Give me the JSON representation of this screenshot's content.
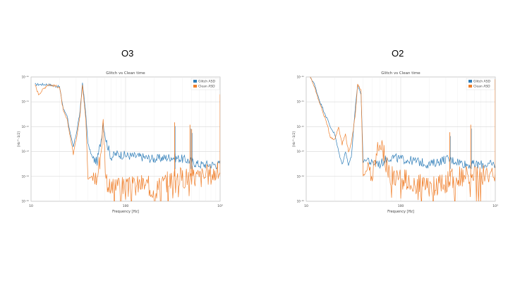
{
  "slide": {
    "left_label": "O3",
    "right_label": "O2"
  },
  "colors": {
    "glitch": "#2e7db8",
    "clean": "#f07f2b"
  },
  "chart_data": [
    {
      "type": "line",
      "title": "Glitch vs Clean time",
      "xlabel": "Frequency [Hz]",
      "ylabel": "[Hz^-1/2]",
      "xscale": "log",
      "yscale": "log",
      "xlim": [
        10,
        1000
      ],
      "ylim": [
        1e-25,
        1e-20
      ],
      "x_ticks": [
        "10",
        "100",
        "10³"
      ],
      "y_ticks": [
        "10⁻²⁵",
        "10⁻²⁴",
        "10⁻²³",
        "10⁻²²",
        "10⁻²¹",
        "10⁻²⁰"
      ],
      "grid": true,
      "legend_position": "top-right",
      "series": [
        {
          "name": "Glitch ASD",
          "color": "#2e7db8",
          "x": [
            11,
            12,
            15,
            20,
            22,
            24,
            26,
            28,
            30,
            33,
            35,
            38,
            40,
            45,
            50,
            55,
            58,
            62,
            70,
            80,
            100,
            150,
            200,
            300,
            400,
            500,
            600,
            800,
            1000
          ],
          "y": [
            5e-21,
            5e-21,
            5e-21,
            4e-21,
            5e-22,
            3e-22,
            5e-23,
            1.5e-23,
            5e-23,
            4e-22,
            6e-21,
            3e-22,
            2e-23,
            5e-24,
            4e-24,
            3e-23,
            1.5e-22,
            3e-23,
            6e-24,
            8e-24,
            7e-24,
            6e-24,
            5e-24,
            6e-24,
            5e-24,
            4e-24,
            3e-24,
            3e-24,
            3e-24
          ]
        },
        {
          "name": "Clean ASD",
          "color": "#f07f2b",
          "x": [
            11,
            12,
            15,
            20,
            22,
            24,
            26,
            28,
            30,
            33,
            35,
            38,
            40,
            45,
            50,
            55,
            58,
            62,
            70,
            80,
            100,
            150,
            200,
            300,
            400,
            500,
            600,
            800,
            1000
          ],
          "y": [
            5e-21,
            2e-21,
            5e-21,
            4e-21,
            4e-22,
            2e-22,
            4e-23,
            8e-24,
            3e-23,
            3e-22,
            5e-21,
            2e-22,
            8e-25,
            1e-24,
            8e-25,
            1.2e-23,
            1.5e-22,
            1e-24,
            2e-25,
            6e-25,
            3e-25,
            5e-25,
            3e-25,
            8e-25,
            9e-25,
            1e-24,
            9e-25,
            1.2e-24,
            1.5e-24
          ]
        }
      ],
      "spikes": [
        {
          "x": 330,
          "y": 1.5e-22
        },
        {
          "x": 480,
          "y": 1.2e-22
        },
        {
          "x": 500,
          "y": 8e-23
        },
        {
          "x": 1000,
          "y": 2e-21
        }
      ]
    },
    {
      "type": "line",
      "title": "Glitch vs Clean time",
      "xlabel": "Frequency [Hz]",
      "ylabel": "[Hz^-1/2]",
      "xscale": "log",
      "yscale": "log",
      "xlim": [
        10,
        1000
      ],
      "ylim": [
        1e-25,
        1e-20
      ],
      "x_ticks": [
        "10",
        "100",
        "10³"
      ],
      "y_ticks": [
        "10⁻²⁵",
        "10⁻²⁴",
        "10⁻²³",
        "10⁻²²",
        "10⁻²¹",
        "10⁻²⁰"
      ],
      "grid": true,
      "legend_position": "top-right",
      "series": [
        {
          "name": "Glitch ASD",
          "color": "#2e7db8",
          "x": [
            11,
            12,
            14,
            16,
            18,
            20,
            22,
            24,
            26,
            28,
            30,
            33,
            35,
            38,
            40,
            45,
            50,
            55,
            60,
            70,
            80,
            100,
            150,
            200,
            300,
            400,
            500,
            600,
            800,
            1000
          ],
          "y": [
            1e-20,
            6e-21,
            1e-21,
            3e-22,
            1e-22,
            5e-23,
            1e-23,
            3e-24,
            1e-23,
            3e-24,
            6e-24,
            5e-22,
            5e-21,
            2e-21,
            4e-24,
            5e-24,
            3e-24,
            4e-24,
            3e-24,
            5e-24,
            6e-24,
            5e-24,
            4e-24,
            3e-24,
            5e-24,
            4e-24,
            3e-24,
            3e-24,
            3e-24,
            3e-24
          ]
        },
        {
          "name": "Clean ASD",
          "color": "#f07f2b",
          "x": [
            11,
            12,
            14,
            16,
            18,
            20,
            22,
            24,
            26,
            28,
            30,
            33,
            35,
            38,
            40,
            45,
            50,
            55,
            60,
            70,
            80,
            100,
            150,
            200,
            300,
            400,
            500,
            600,
            800,
            1000
          ],
          "y": [
            1e-20,
            5e-21,
            8e-22,
            2e-22,
            4e-23,
            3e-23,
            1e-22,
            2e-23,
            5e-23,
            1e-23,
            2e-23,
            3e-22,
            5e-21,
            3e-21,
            1e-24,
            2e-24,
            1e-24,
            6e-24,
            3e-23,
            3e-24,
            1e-24,
            8e-25,
            5e-25,
            3e-25,
            6e-25,
            9e-25,
            1e-24,
            1e-24,
            1.2e-24,
            1.5e-24
          ]
        }
      ],
      "spikes": [
        {
          "x": 330,
          "y": 6e-23
        },
        {
          "x": 550,
          "y": 1.2e-22
        },
        {
          "x": 1000,
          "y": 8e-21
        }
      ]
    }
  ]
}
